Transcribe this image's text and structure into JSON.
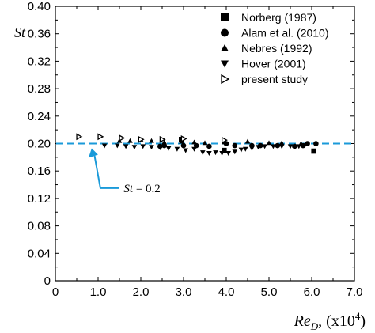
{
  "chart_data": {
    "type": "scatter",
    "ylabel": "St",
    "xlabel_main": "Re",
    "xlabel_sub": "D",
    "xlabel_unit": ", (x10",
    "xlabel_exp": "4",
    "xlabel_close": ")",
    "xlim": [
      0,
      7.0
    ],
    "ylim": [
      0,
      0.4
    ],
    "xticks": [
      0,
      1.0,
      2.0,
      3.0,
      4.0,
      5.0,
      6.0,
      7.0
    ],
    "xtick_labels": [
      "0",
      "1.0",
      "2.0",
      "3.0",
      "4.0",
      "5.0",
      "6.0",
      "7.0"
    ],
    "yticks": [
      0,
      0.04,
      0.08,
      0.12,
      0.16,
      0.2,
      0.24,
      0.28,
      0.32,
      0.36,
      0.4
    ],
    "ytick_labels": [
      "0",
      "0.04",
      "0.08",
      "0.12",
      "0.16",
      "0.20",
      "0.24",
      "0.28",
      "0.32",
      "0.36",
      "0.40"
    ],
    "grid": false,
    "legend_position": "top-right",
    "reference_line": {
      "y": 0.2,
      "color": "#1a9ad9",
      "style": "dashed"
    },
    "annotation": {
      "prefix": "St",
      "suffix": " = 0.2",
      "target": [
        0.85,
        0.2
      ],
      "text_at": [
        1.6,
        0.135
      ]
    },
    "series": [
      {
        "name": "Norberg (1987)",
        "marker": "square",
        "points": [
          [
            2.95,
            0.206
          ],
          [
            3.95,
            0.19
          ],
          [
            6.05,
            0.189
          ]
        ]
      },
      {
        "name": "Alam et al. (2010)",
        "marker": "circle",
        "points": [
          [
            2.45,
            0.196
          ],
          [
            2.55,
            0.197
          ],
          [
            3.0,
            0.197
          ],
          [
            3.3,
            0.197
          ],
          [
            3.6,
            0.196
          ],
          [
            4.0,
            0.2
          ],
          [
            4.2,
            0.197
          ],
          [
            4.6,
            0.197
          ],
          [
            4.8,
            0.197
          ],
          [
            5.2,
            0.197
          ],
          [
            5.6,
            0.196
          ],
          [
            5.8,
            0.197
          ],
          [
            5.9,
            0.2
          ],
          [
            6.1,
            0.2
          ]
        ]
      },
      {
        "name": "Nebres (1992)",
        "marker": "triangle-up",
        "points": [
          [
            1.5,
            0.204
          ],
          [
            1.75,
            0.204
          ],
          [
            2.0,
            0.206
          ],
          [
            2.25,
            0.204
          ],
          [
            2.55,
            0.202
          ],
          [
            2.95,
            0.203
          ],
          [
            3.25,
            0.202
          ],
          [
            3.5,
            0.201
          ],
          [
            3.95,
            0.202
          ],
          [
            4.5,
            0.203
          ],
          [
            5.0,
            0.201
          ],
          [
            5.3,
            0.201
          ],
          [
            5.75,
            0.2
          ]
        ]
      },
      {
        "name": "Hover (2001)",
        "marker": "triangle-down",
        "points": [
          [
            1.15,
            0.197
          ],
          [
            1.45,
            0.197
          ],
          [
            1.65,
            0.196
          ],
          [
            1.85,
            0.195
          ],
          [
            2.05,
            0.196
          ],
          [
            2.25,
            0.195
          ],
          [
            2.45,
            0.194
          ],
          [
            2.65,
            0.193
          ],
          [
            2.85,
            0.192
          ],
          [
            3.05,
            0.19
          ],
          [
            3.25,
            0.192
          ],
          [
            3.45,
            0.187
          ],
          [
            3.6,
            0.186
          ],
          [
            3.75,
            0.187
          ],
          [
            3.9,
            0.186
          ],
          [
            4.05,
            0.186
          ],
          [
            4.2,
            0.188
          ],
          [
            4.35,
            0.191
          ],
          [
            4.45,
            0.192
          ],
          [
            4.6,
            0.193
          ],
          [
            4.75,
            0.195
          ],
          [
            4.9,
            0.196
          ],
          [
            5.1,
            0.196
          ],
          [
            5.3,
            0.196
          ],
          [
            5.5,
            0.196
          ],
          [
            5.7,
            0.196
          ]
        ]
      },
      {
        "name": "present study",
        "marker": "triangle-right",
        "points": [
          [
            0.55,
            0.21
          ],
          [
            1.05,
            0.21
          ],
          [
            1.55,
            0.208
          ],
          [
            2.0,
            0.206
          ],
          [
            2.5,
            0.206
          ],
          [
            3.0,
            0.207
          ],
          [
            3.95,
            0.205
          ]
        ]
      }
    ]
  }
}
